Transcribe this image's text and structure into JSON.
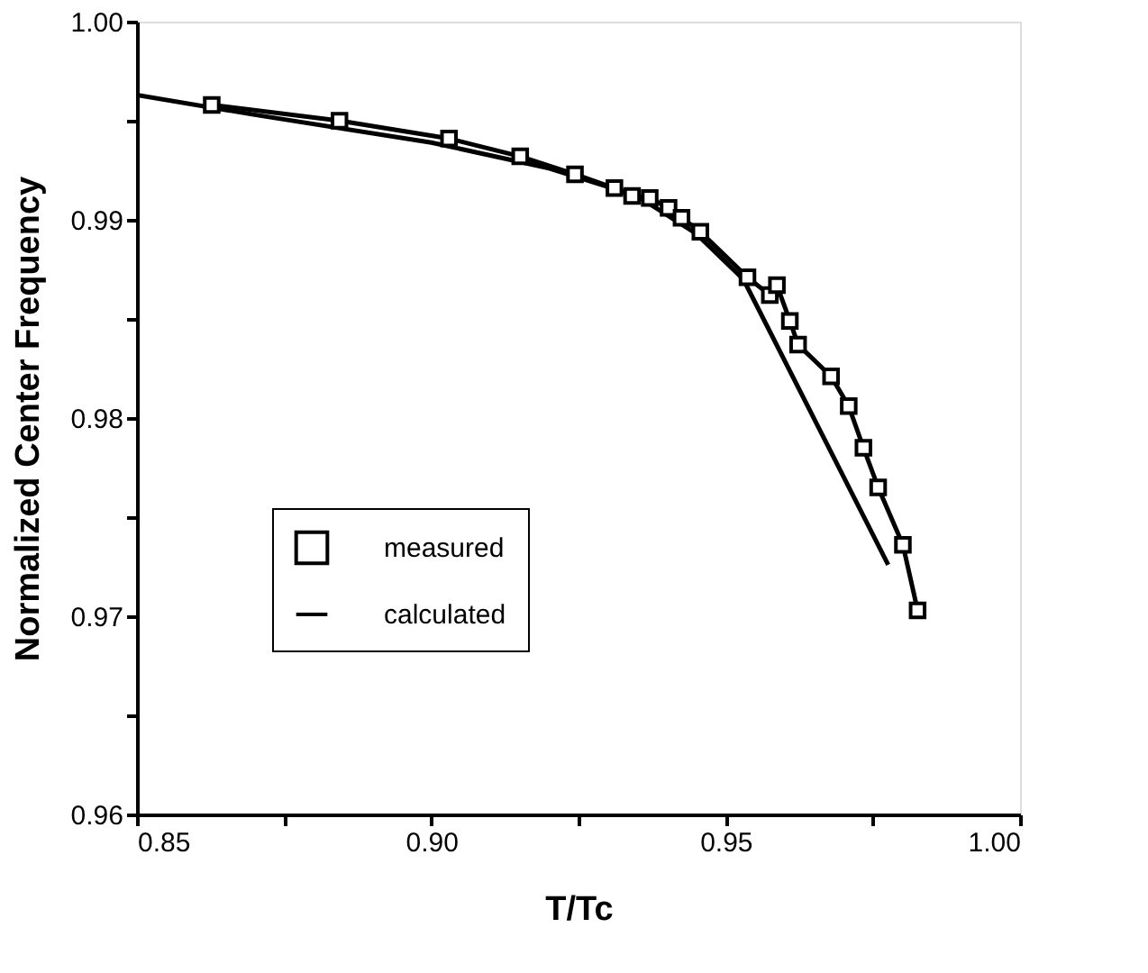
{
  "chart_data": {
    "type": "line",
    "xlabel": "T/Tc",
    "ylabel": "Normalized  Center Frequency",
    "xlim": [
      0.85,
      1.0
    ],
    "ylim": [
      0.96,
      1.0
    ],
    "xticks": [
      0.85,
      {
        "value": 0.875,
        "label": null
      },
      {
        "value": 0.9,
        "label": "0.90"
      },
      {
        "value": 0.925,
        "label": null
      },
      0.95,
      {
        "value": 0.975,
        "label": null
      },
      {
        "value": 1.0,
        "label": "1.00"
      }
    ],
    "yticks": [
      0.96,
      {
        "value": 0.965,
        "label": null
      },
      0.97,
      {
        "value": 0.975,
        "label": null
      },
      0.98,
      {
        "value": 0.985,
        "label": null
      },
      0.99,
      {
        "value": 0.995,
        "label": null
      },
      {
        "value": 1.0,
        "label": "1.00"
      }
    ],
    "grid": false,
    "legend": "center left",
    "series": [
      {
        "name": "measured",
        "color": "#000000",
        "marker": "square",
        "x": [
          0.8627,
          0.8844,
          0.903,
          0.9151,
          0.9244,
          0.9311,
          0.9341,
          0.9371,
          0.9403,
          0.9425,
          0.9457,
          0.9537,
          0.9575,
          0.9587,
          0.9609,
          0.9623,
          0.9679,
          0.9709,
          0.9734,
          0.9759,
          0.9801,
          0.9826
        ],
        "values": [
          0.9958,
          0.995,
          0.9941,
          0.9932,
          0.9923,
          0.9916,
          0.9912,
          0.9911,
          0.9906,
          0.9901,
          0.9894,
          0.9871,
          0.9862,
          0.9867,
          0.9849,
          0.9837,
          0.9821,
          0.9806,
          0.9785,
          0.9765,
          0.9736,
          0.9703
        ]
      },
      {
        "name": "calculated",
        "color": "#000000",
        "marker": "none",
        "x": [
          0.85,
          0.87,
          0.9,
          0.92,
          0.935,
          0.945,
          0.953,
          0.9776
        ],
        "values": [
          0.9963,
          0.9953,
          0.9939,
          0.9926,
          0.9912,
          0.9893,
          0.987,
          0.9726
        ]
      }
    ]
  }
}
